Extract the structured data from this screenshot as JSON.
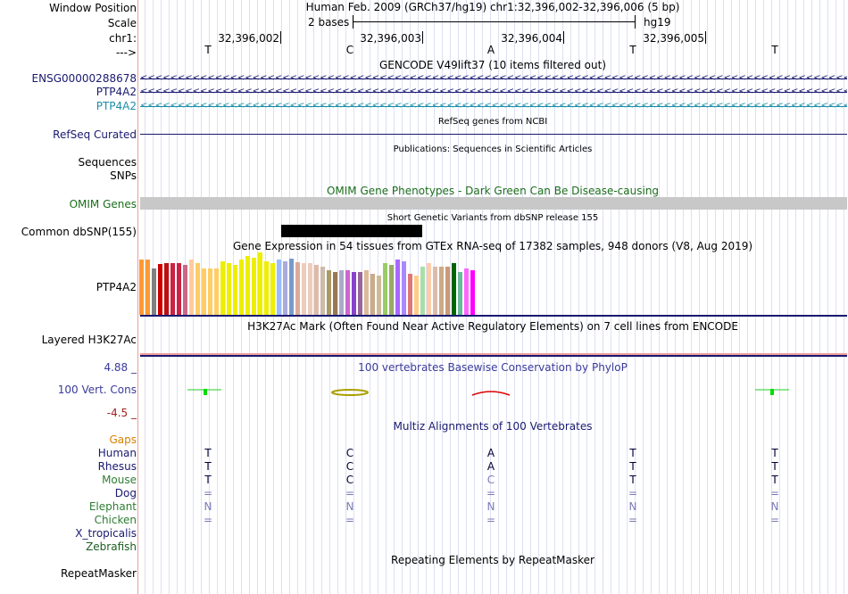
{
  "window_position_label": "Window Position",
  "scale_label": "Scale",
  "chr_label": "chr1:",
  "strand_label": "--->",
  "position_title": "Human Feb. 2009 (GRCh37/hg19)   chr1:32,396,002-32,396,006 (5 bp)",
  "scale_text": "2 bases",
  "assembly": "hg19",
  "ruler_ticks": [
    "32,396,002",
    "32,396,003",
    "32,396,004",
    "32,396,005"
  ],
  "bases": [
    "T",
    "C",
    "A",
    "T",
    "T"
  ],
  "gencode": {
    "title": "GENCODE V49lift37 (10 items filtered out)",
    "tracks": [
      {
        "label": "ENSG00000288678",
        "color": "#191970"
      },
      {
        "label": "PTP4A2",
        "color": "#191970"
      },
      {
        "label": "PTP4A2",
        "color": "#1b8ea8"
      }
    ]
  },
  "refseq": {
    "title": "RefSeq genes from NCBI",
    "label": "RefSeq Curated"
  },
  "publications": {
    "title": "Publications: Sequences in Scientific Articles",
    "labels": [
      "Sequences",
      "SNPs"
    ]
  },
  "omim": {
    "title": "OMIM Gene Phenotypes - Dark Green Can Be Disease-causing",
    "label": "OMIM Genes"
  },
  "dbsnp": {
    "title": "Short Genetic Variants from dbSNP release 155",
    "label": "Common dbSNP(155)"
  },
  "gtex": {
    "title": "Gene Expression in 54 tissues from GTEx RNA-seq of 17382 samples, 948 donors (V8, Aug 2019)",
    "label": "PTP4A2",
    "colors": [
      "#ff9933",
      "#ff9933",
      "#808080",
      "#cc0000",
      "#bb1111",
      "#cc2244",
      "#cc2244",
      "#cc6688",
      "#ffcc99",
      "#ffcc66",
      "#ffcc66",
      "#ffcc66",
      "#ffcc66",
      "#eeee00",
      "#eeee00",
      "#eeee00",
      "#eeee00",
      "#eeee00",
      "#eeee00",
      "#eeee00",
      "#eeee00",
      "#eeee00",
      "#99bbff",
      "#aaaadd",
      "#7799cc",
      "#ddaa99",
      "#eeccbb",
      "#eeccbb",
      "#ddbbaa",
      "#ccbbaa",
      "#aa9966",
      "#997755",
      "#aaaacc",
      "#cc66cc",
      "#8844cc",
      "#996699",
      "#ddbb99",
      "#ccaa88",
      "#ccbb99",
      "#99cc66",
      "#99aa66",
      "#aa66ff",
      "#aa88ff",
      "#dd7777",
      "#ffcc88",
      "#aaddaa",
      "#ffccaa",
      "#ddbbaa",
      "#ccaa88",
      "#cc9977",
      "#006600",
      "#66bb99",
      "#ff66ff",
      "#ff00ff"
    ],
    "values": [
      62,
      62,
      52,
      57,
      58,
      58,
      58,
      56,
      62,
      58,
      52,
      52,
      52,
      60,
      58,
      56,
      62,
      66,
      64,
      70,
      60,
      58,
      62,
      60,
      63,
      59,
      58,
      58,
      56,
      54,
      50,
      48,
      50,
      50,
      48,
      48,
      50,
      46,
      44,
      58,
      56,
      62,
      60,
      46,
      44,
      54,
      58,
      54,
      54,
      54,
      58,
      48,
      52,
      50
    ]
  },
  "h3k27ac": {
    "title": "H3K27Ac Mark (Often Found Near Active Regulatory Elements) on 7 cell lines from ENCODE",
    "label": "Layered H3K27Ac"
  },
  "phylop": {
    "title": "100 vertebrates Basewise Conservation by PhyloP",
    "label": "100 Vert. Cons",
    "max": "4.88 _",
    "min": "-4.5 _"
  },
  "multiz": {
    "title": "Multiz Alignments of 100 Vertebrates",
    "species": [
      {
        "label": "Gaps",
        "color": "#d98200",
        "seq": [
          "",
          "",
          "",
          "",
          ""
        ]
      },
      {
        "label": "Human",
        "color": "#191970",
        "seq": [
          "T",
          "C",
          "A",
          "T",
          "T"
        ]
      },
      {
        "label": "Rhesus",
        "color": "#191970",
        "seq": [
          "T",
          "C",
          "A",
          "T",
          "T"
        ]
      },
      {
        "label": "Mouse",
        "color": "#2e7d32",
        "seq": [
          "T",
          "C",
          "C",
          "T",
          "T"
        ]
      },
      {
        "label": "Dog",
        "color": "#191970",
        "seq": [
          "=",
          "=",
          "=",
          "=",
          "="
        ]
      },
      {
        "label": "Elephant",
        "color": "#2e7d32",
        "seq": [
          "N",
          "N",
          "N",
          "N",
          "N"
        ]
      },
      {
        "label": "Chicken",
        "color": "#2e7d32",
        "seq": [
          "=",
          "=",
          "=",
          "=",
          "="
        ]
      },
      {
        "label": "X_tropicalis",
        "color": "#191970",
        "seq": [
          "",
          "",
          "",
          "",
          ""
        ]
      },
      {
        "label": "Zebrafish",
        "color": "#1b5e20",
        "seq": [
          "",
          "",
          "",
          "",
          ""
        ]
      }
    ]
  },
  "repeatmasker": {
    "title": "Repeating Elements by RepeatMasker",
    "label": "RepeatMasker"
  }
}
